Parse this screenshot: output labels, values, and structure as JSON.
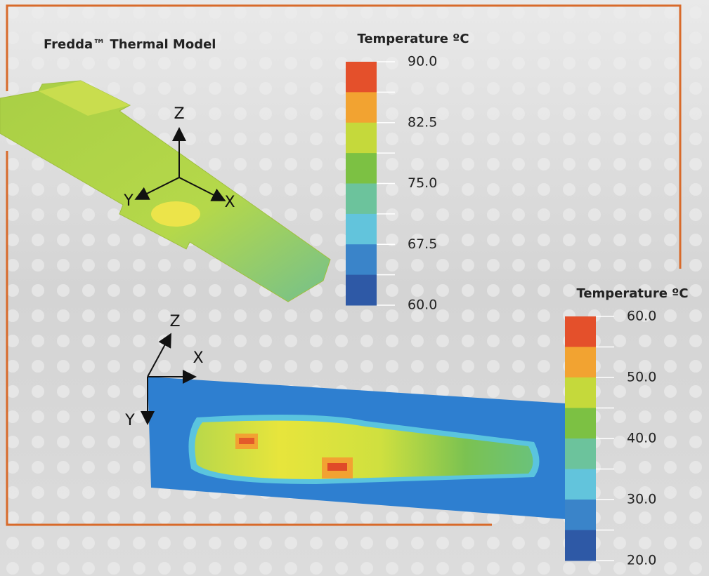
{
  "title": "Fredda™ Thermal Model",
  "top_model": {
    "axes": {
      "z": "Z",
      "y": "Y",
      "x": "X"
    },
    "legend": {
      "title": "Temperature ºC",
      "labels": [
        "90.0",
        "82.5",
        "75.0",
        "67.5",
        "60.0"
      ]
    }
  },
  "bottom_model": {
    "axes": {
      "z": "Z",
      "x": "X",
      "y": "Y"
    },
    "legend": {
      "title": "Temperature ºC",
      "labels": [
        "60.0",
        "50.0",
        "40.0",
        "30.0",
        "20.0"
      ]
    }
  }
}
